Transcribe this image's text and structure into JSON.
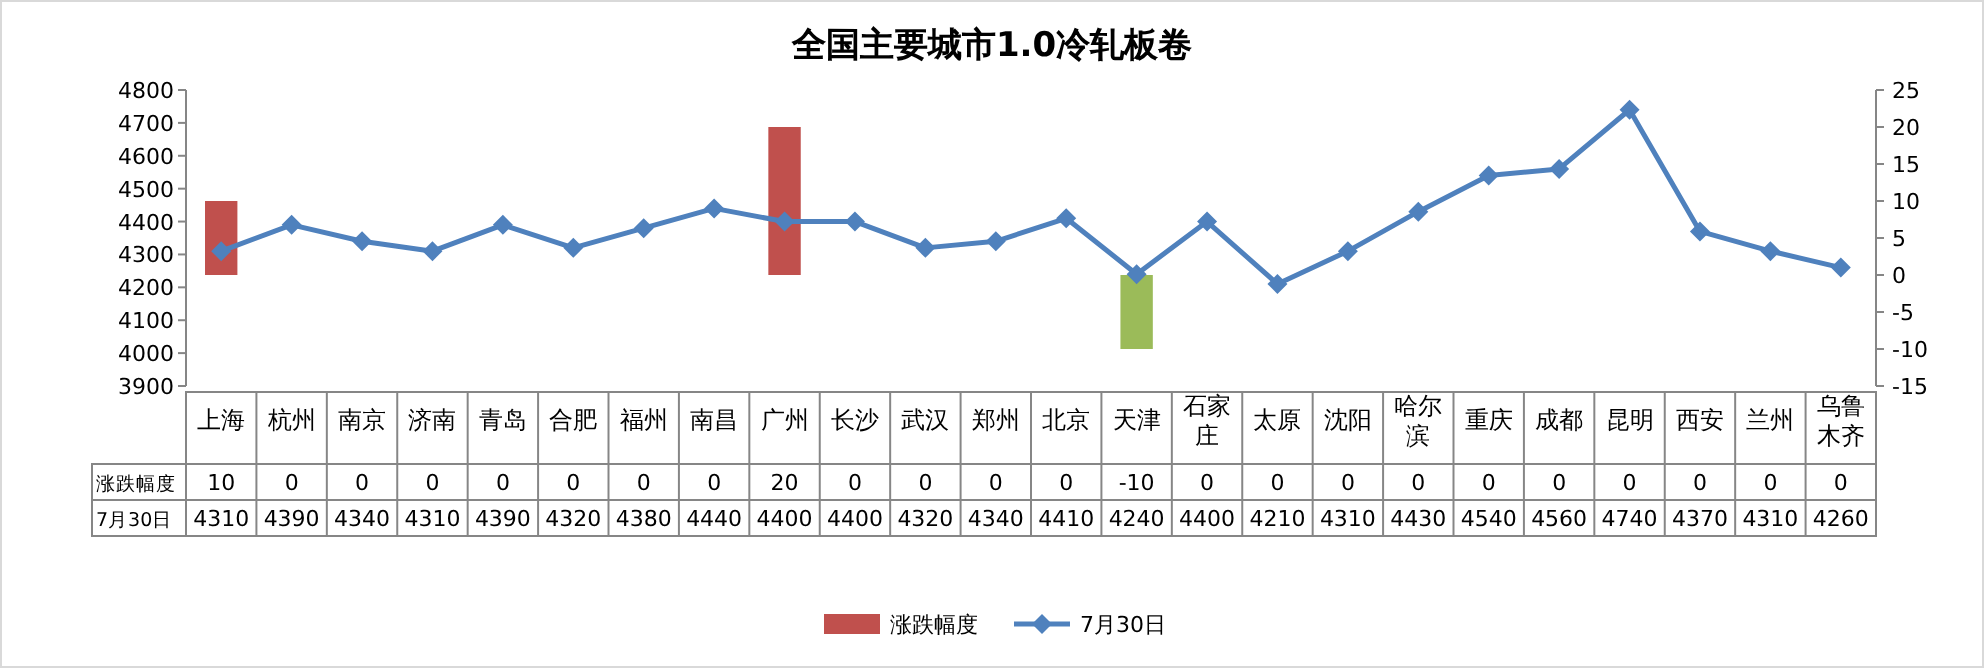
{
  "chart_data": {
    "type": "bar",
    "title": "全国主要城市1.0冷轧板卷",
    "categories": [
      "上海",
      "杭州",
      "南京",
      "济南",
      "青岛",
      "合肥",
      "福州",
      "南昌",
      "广州",
      "长沙",
      "武汉",
      "郑州",
      "北京",
      "天津",
      "石家庄",
      "太原",
      "沈阳",
      "哈尔滨",
      "重庆",
      "成都",
      "昆明",
      "西安",
      "兰州",
      "乌鲁木齐"
    ],
    "series": [
      {
        "name": "涨跌幅度",
        "axis": "y2",
        "color": "#c0504d",
        "colors": [
          "#c0504d",
          "#c0504d",
          "#c0504d",
          "#c0504d",
          "#c0504d",
          "#c0504d",
          "#c0504d",
          "#c0504d",
          "#c0504d",
          "#c0504d",
          "#c0504d",
          "#c0504d",
          "#c0504d",
          "#9bbb59",
          "#c0504d",
          "#c0504d",
          "#c0504d",
          "#c0504d",
          "#c0504d",
          "#c0504d",
          "#c0504d",
          "#c0504d",
          "#c0504d",
          "#c0504d"
        ],
        "values": [
          10,
          0,
          0,
          0,
          0,
          0,
          0,
          0,
          20,
          0,
          0,
          0,
          0,
          -10,
          0,
          0,
          0,
          0,
          0,
          0,
          0,
          0,
          0,
          0
        ]
      },
      {
        "name": "7月30日",
        "type": "line",
        "color": "#4f81bd",
        "values": [
          4310,
          4390,
          4340,
          4310,
          4390,
          4320,
          4380,
          4440,
          4400,
          4400,
          4320,
          4340,
          4410,
          4240,
          4400,
          4210,
          4310,
          4430,
          4540,
          4560,
          4740,
          4370,
          4310,
          4260
        ]
      }
    ],
    "ylim": [
      3900,
      4800
    ],
    "yticks": [
      3900,
      4000,
      4100,
      4200,
      4300,
      4400,
      4500,
      4600,
      4700,
      4800
    ],
    "y2lim": [
      -15,
      25
    ],
    "y2ticks": [
      -15,
      -10,
      -5,
      0,
      5,
      10,
      15,
      20,
      25
    ],
    "marker": "diamond",
    "legend": "bottom",
    "data_labels": true
  }
}
